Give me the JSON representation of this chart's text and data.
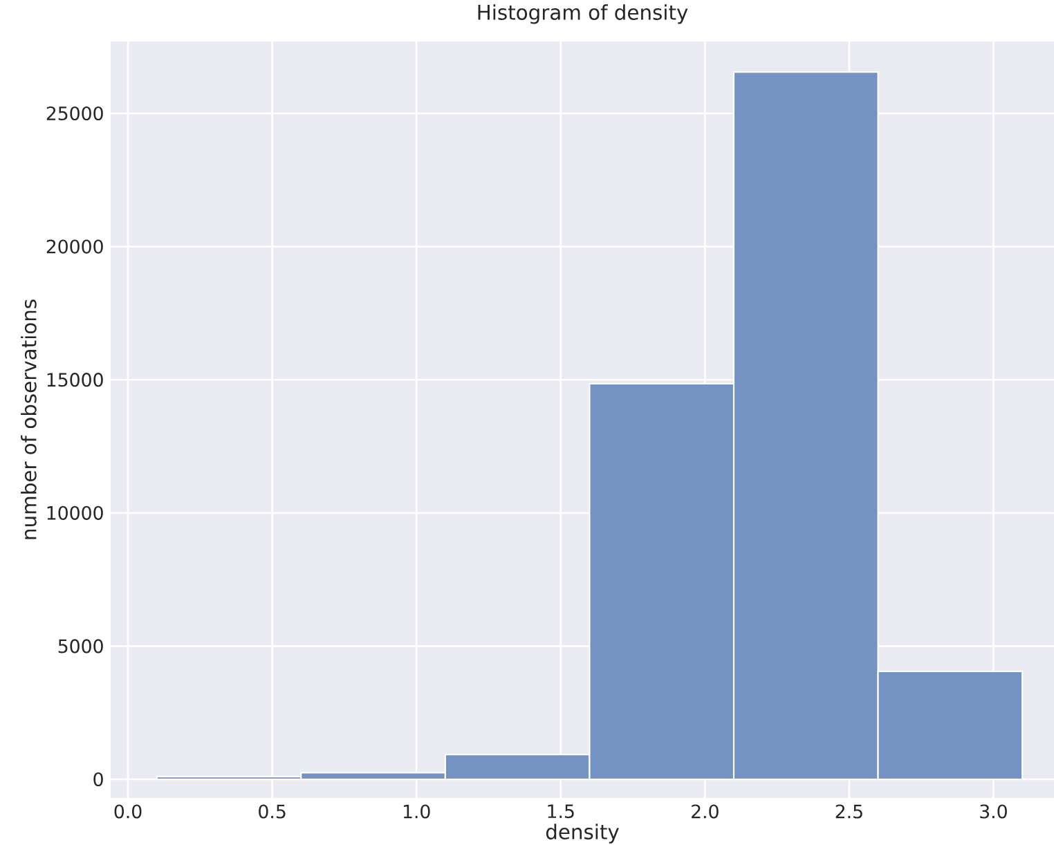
{
  "chart_data": {
    "type": "histogram",
    "title": "Histogram of density",
    "xlabel": "density",
    "ylabel": "number of observations",
    "bins": [
      0.1,
      0.6,
      1.1,
      1.6,
      2.1,
      2.6,
      3.1
    ],
    "values": [
      100,
      250,
      930,
      14850,
      26550,
      4050
    ],
    "color": "#7493c3",
    "xlim": [
      -0.06,
      3.21
    ],
    "ylim": [
      -700,
      27700
    ],
    "xticks": [
      {
        "value": 0,
        "label": "0.0"
      },
      0.5,
      {
        "value": 1,
        "label": "1.0"
      },
      1.5,
      {
        "value": 2,
        "label": "2.0"
      },
      2.5,
      {
        "value": 3,
        "label": "3.0"
      }
    ],
    "yticks": [
      0,
      5000,
      10000,
      15000,
      20000,
      25000
    ],
    "grid": true
  }
}
